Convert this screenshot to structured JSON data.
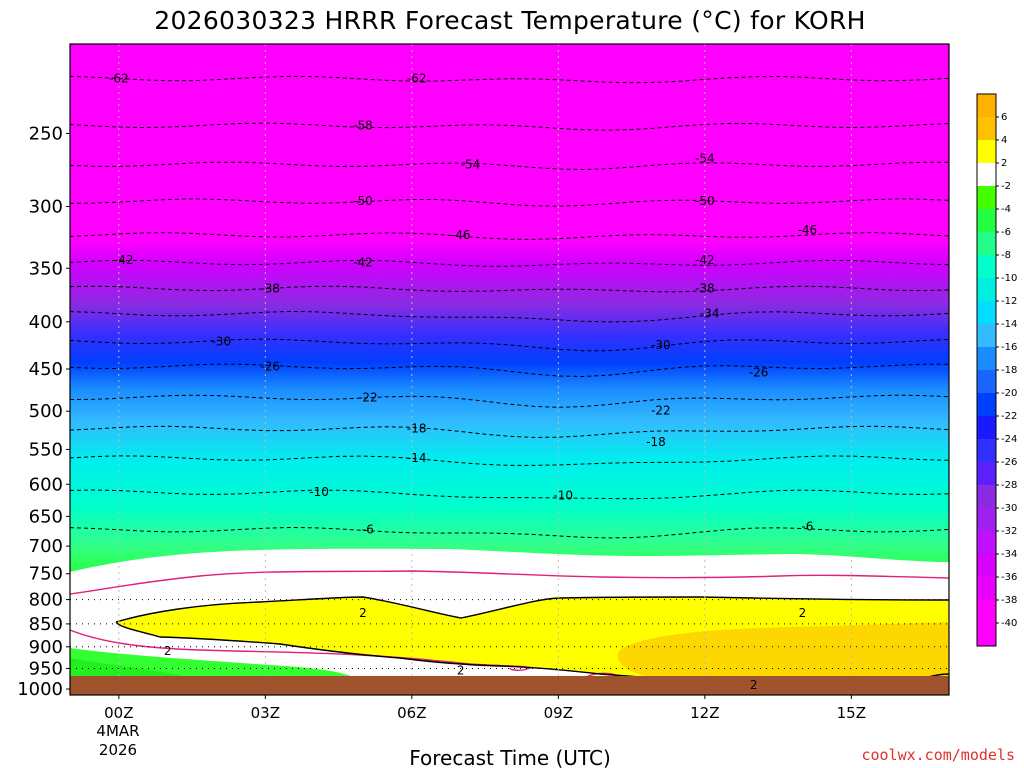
{
  "chart_data": {
    "type": "heatmap",
    "title": "2026030323 HRRR Forecast Temperature (°C) for KORH",
    "xlabel": "Forecast Time (UTC)",
    "x_ticks": [
      "00Z",
      "03Z",
      "06Z",
      "09Z",
      "12Z",
      "15Z"
    ],
    "x_date_label": [
      "4MAR",
      "2026"
    ],
    "xlim_hours": [
      -1,
      17
    ],
    "ylabel": "",
    "y_axis": "pressure (hPa)",
    "y_ticks": [
      250,
      300,
      350,
      400,
      450,
      500,
      550,
      600,
      650,
      700,
      750,
      800,
      850,
      900,
      950,
      1000
    ],
    "ylim": [
      1015,
      200
    ],
    "grid": true,
    "colorbar_ticks": [
      6,
      4,
      2,
      -2,
      -4,
      -6,
      -8,
      -10,
      -12,
      -14,
      -16,
      -18,
      -20,
      -22,
      -24,
      -26,
      -28,
      -30,
      -32,
      -34,
      -36,
      -38,
      -40
    ],
    "colors": {
      "ground": "#a0522d",
      "t_warm_6": "#ffc000",
      "t_warm_4": "#ffd700",
      "t_warm_2": "#ffff00",
      "t_near_0": "#ffffff",
      "freezing_line": "#e0207a",
      "t_cold_40": "#ff00ff"
    },
    "isotherm_levels_hpa": {
      "-62": 218,
      "-58": 245,
      "-54": 270,
      "-50": 296,
      "-46": 322,
      "-42": 345,
      "-38": 368,
      "-34": 392,
      "-30": 420,
      "-26": 447,
      "-22": 483,
      "-18": 522,
      "-14": 562,
      "-10": 612,
      "-6": 672
    },
    "contour_labels": [
      {
        "value": -62,
        "hour": 0.0,
        "p": 218
      },
      {
        "value": -62,
        "hour": 6.1,
        "p": 218
      },
      {
        "value": -58,
        "hour": 5.0,
        "p": 245
      },
      {
        "value": -54,
        "hour": 7.2,
        "p": 270
      },
      {
        "value": -54,
        "hour": 12.0,
        "p": 266
      },
      {
        "value": -50,
        "hour": 5.0,
        "p": 296
      },
      {
        "value": -50,
        "hour": 12.0,
        "p": 296
      },
      {
        "value": -46,
        "hour": 7.0,
        "p": 322
      },
      {
        "value": -46,
        "hour": 14.1,
        "p": 318
      },
      {
        "value": -42,
        "hour": 0.1,
        "p": 343
      },
      {
        "value": -42,
        "hour": 5.0,
        "p": 345
      },
      {
        "value": -42,
        "hour": 12.0,
        "p": 343
      },
      {
        "value": -38,
        "hour": 3.1,
        "p": 368
      },
      {
        "value": -38,
        "hour": 12.0,
        "p": 368
      },
      {
        "value": -34,
        "hour": 12.1,
        "p": 392
      },
      {
        "value": -30,
        "hour": 2.1,
        "p": 420
      },
      {
        "value": -30,
        "hour": 11.1,
        "p": 424
      },
      {
        "value": -26,
        "hour": 3.1,
        "p": 447
      },
      {
        "value": -26,
        "hour": 13.1,
        "p": 454
      },
      {
        "value": -22,
        "hour": 5.1,
        "p": 483
      },
      {
        "value": -22,
        "hour": 11.1,
        "p": 499
      },
      {
        "value": -18,
        "hour": 6.1,
        "p": 522
      },
      {
        "value": -18,
        "hour": 11.0,
        "p": 540
      },
      {
        "value": -14,
        "hour": 6.1,
        "p": 562
      },
      {
        "value": -10,
        "hour": 4.1,
        "p": 612
      },
      {
        "value": -10,
        "hour": 9.1,
        "p": 617
      },
      {
        "value": -6,
        "hour": 5.1,
        "p": 672
      },
      {
        "value": -6,
        "hour": 14.1,
        "p": 667
      },
      {
        "value": 2,
        "hour": 5.0,
        "p": 827
      },
      {
        "value": 2,
        "hour": 14.0,
        "p": 827
      },
      {
        "value": 2,
        "hour": 1.0,
        "p": 910
      },
      {
        "value": 2,
        "hour": 7.0,
        "p": 955
      },
      {
        "value": 2,
        "hour": 13.0,
        "p": 990
      }
    ]
  }
}
